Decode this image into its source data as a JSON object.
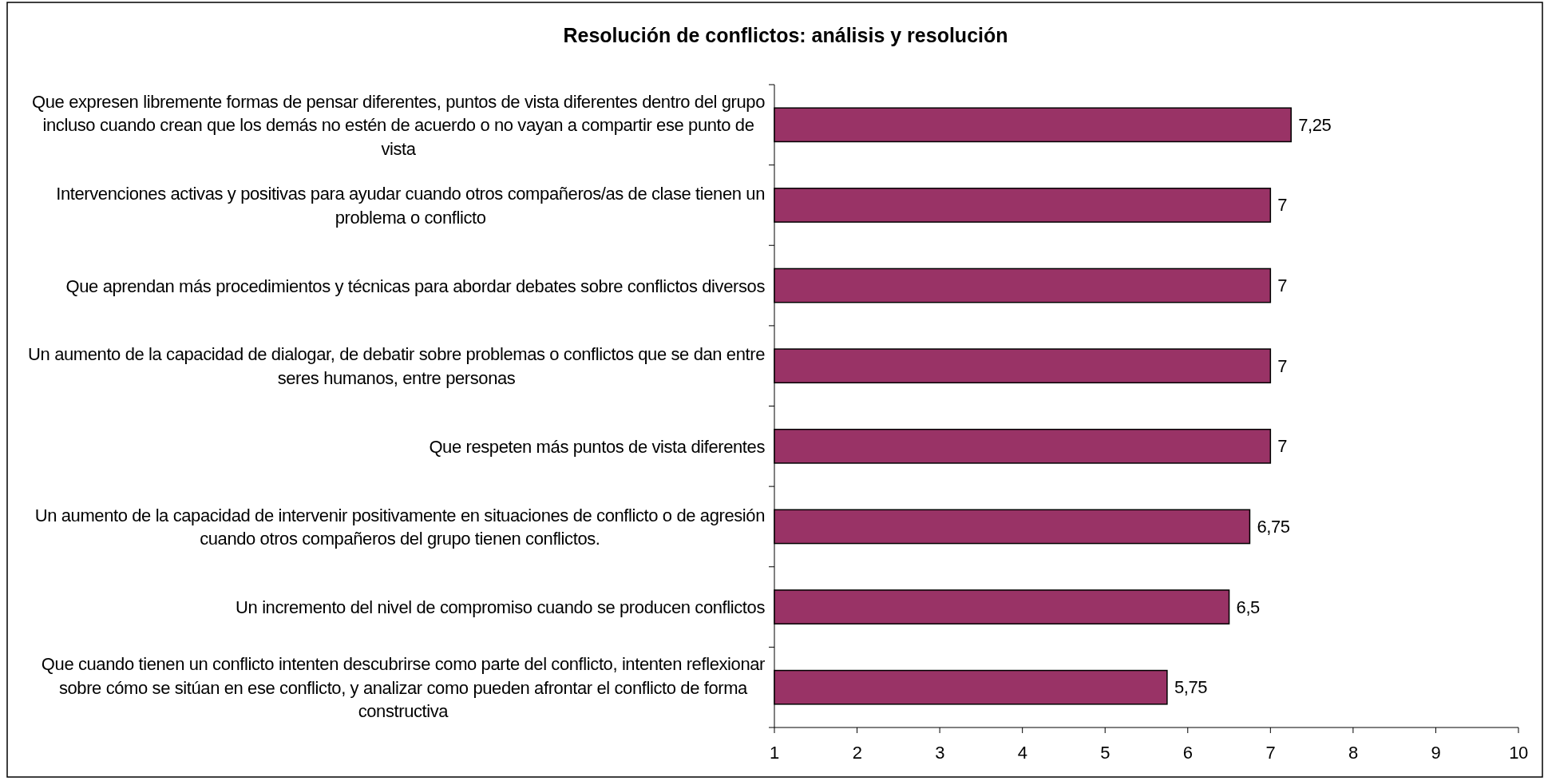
{
  "chart_data": {
    "type": "bar",
    "orientation": "horizontal",
    "title": "Resolución de conflictos: análisis y resolución",
    "categories": [
      "Que expresen libremente formas de pensar diferentes, puntos de vista diferentes dentro del grupo incluso cuando crean que los demás no estén de acuerdo o no vayan a compartir ese punto de vista",
      "Intervenciones activas y positivas para ayudar cuando otros compañeros/as de clase tienen un problema o conflicto",
      "Que aprendan más procedimientos y técnicas para abordar debates sobre conflictos diversos",
      "Un aumento de la capacidad de dialogar, de debatir sobre problemas o conflictos que se dan entre seres humanos, entre personas",
      "Que respeten más puntos de vista diferentes",
      "Un aumento de la capacidad de intervenir positivamente en situaciones de conflicto o de agresión cuando otros compañeros del grupo tienen conflictos.",
      "Un incremento del nivel de compromiso cuando se producen conflictos",
      "Que cuando tienen un conflicto intenten descubrirse como parte del conflicto, intenten reflexionar sobre cómo se sitúan en ese conflicto, y analizar como pueden afrontar el conflicto de forma constructiva"
    ],
    "values": [
      7.25,
      7,
      7,
      7,
      7,
      6.75,
      6.5,
      5.75
    ],
    "value_labels": [
      "7,25",
      "7",
      "7",
      "7",
      "7",
      "6,75",
      "6,5",
      "5,75"
    ],
    "color": "#993366",
    "xlim": [
      1,
      10
    ],
    "xticks": [
      1,
      2,
      3,
      4,
      5,
      6,
      7,
      8,
      9,
      10
    ]
  }
}
